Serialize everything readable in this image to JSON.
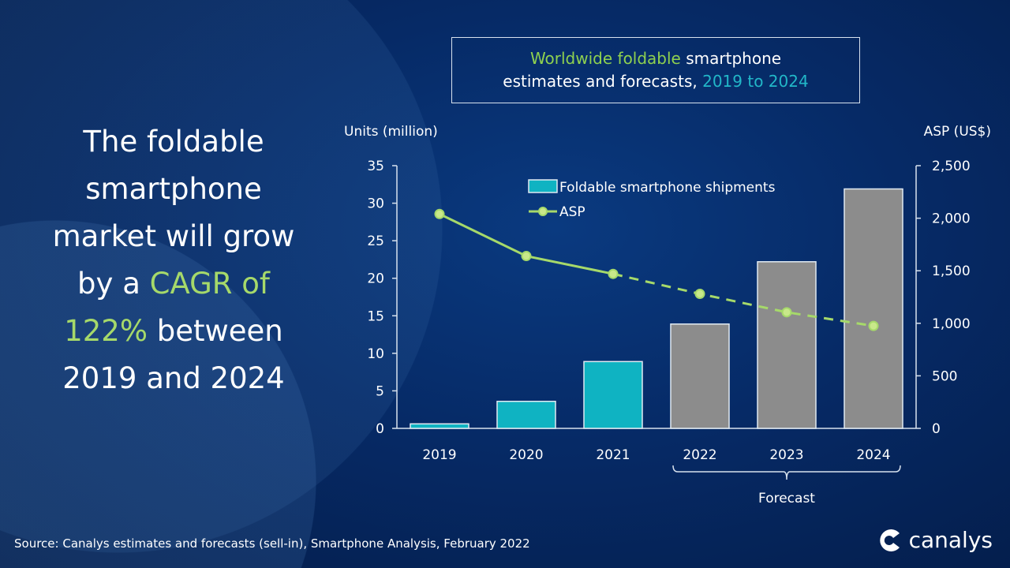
{
  "headline": {
    "l1": "The foldable",
    "l2": "smartphone",
    "l3": "market will grow",
    "l4a": "by a ",
    "l4b": "CAGR of",
    "l5a": "122%",
    "l5b": " between",
    "l6": "2019 and 2024"
  },
  "title_box": {
    "part1": "Worldwide foldable",
    "part2": " smartphone",
    "part3": "estimates and forecasts, ",
    "part4": "2019 to 2024"
  },
  "chart_data": {
    "type": "bar+line",
    "categories": [
      "2019",
      "2020",
      "2021",
      "2022",
      "2023",
      "2024"
    ],
    "ylabel_left": "Units (million)",
    "ylabel_right": "ASP (US$)",
    "ylim_left": [
      0,
      35
    ],
    "yticks_left": [
      "0",
      "5",
      "10",
      "15",
      "20",
      "25",
      "30",
      "35"
    ],
    "ylim_right": [
      0,
      2500
    ],
    "yticks_right": [
      "0",
      "500",
      "1,000",
      "1,500",
      "2,000",
      "2,500"
    ],
    "series": [
      {
        "name": "Foldable smartphone shipments",
        "type": "bar",
        "values": [
          0.6,
          3.6,
          8.9,
          13.9,
          22.2,
          31.9
        ],
        "color": "#0fb3c2",
        "forecast_color": "#8c8c8c"
      },
      {
        "name": "ASP",
        "type": "line",
        "axis": "right",
        "values": [
          2040,
          1640,
          1470,
          1280,
          1105,
          975
        ],
        "color": "#a6d96a"
      }
    ],
    "forecast_from": "2022",
    "forecast_label": "Forecast",
    "legend": "top-center",
    "grid": false
  },
  "source": "Source: Canalys estimates and forecasts (sell-in), Smartphone Analysis, February 2022",
  "logo": "canalys"
}
